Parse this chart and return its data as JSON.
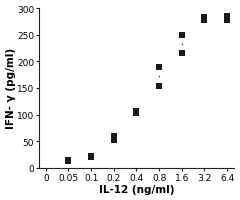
{
  "xlabel": "IL-12 (ng/ml)",
  "ylabel": "IFN- γ (pg/ml)",
  "x_tick_labels": [
    "0",
    "0.05",
    "0.1",
    "0.2",
    "0.4",
    "0.8",
    "1.6",
    "3.2",
    "6.4"
  ],
  "ylim": [
    0,
    300
  ],
  "yticks": [
    0,
    50,
    100,
    150,
    200,
    250,
    300
  ],
  "scatter_x_idx": [
    1,
    1,
    2,
    2,
    3,
    3,
    4,
    4,
    5,
    5,
    6,
    6,
    7,
    7,
    8,
    8
  ],
  "scatter_y": [
    12,
    15,
    20,
    23,
    52,
    60,
    103,
    107,
    153,
    190,
    250,
    215,
    277,
    283,
    278,
    285
  ],
  "small_dot_x_idx": [
    1,
    2,
    3,
    4,
    5,
    6,
    7,
    8
  ],
  "small_dot_y": [
    13.5,
    21.5,
    56,
    105,
    171.5,
    232.5,
    280,
    281.5
  ],
  "marker_color": "#1a1a1a",
  "background_color": "#ffffff",
  "tick_fontsize": 6.5,
  "label_fontsize": 7.5
}
